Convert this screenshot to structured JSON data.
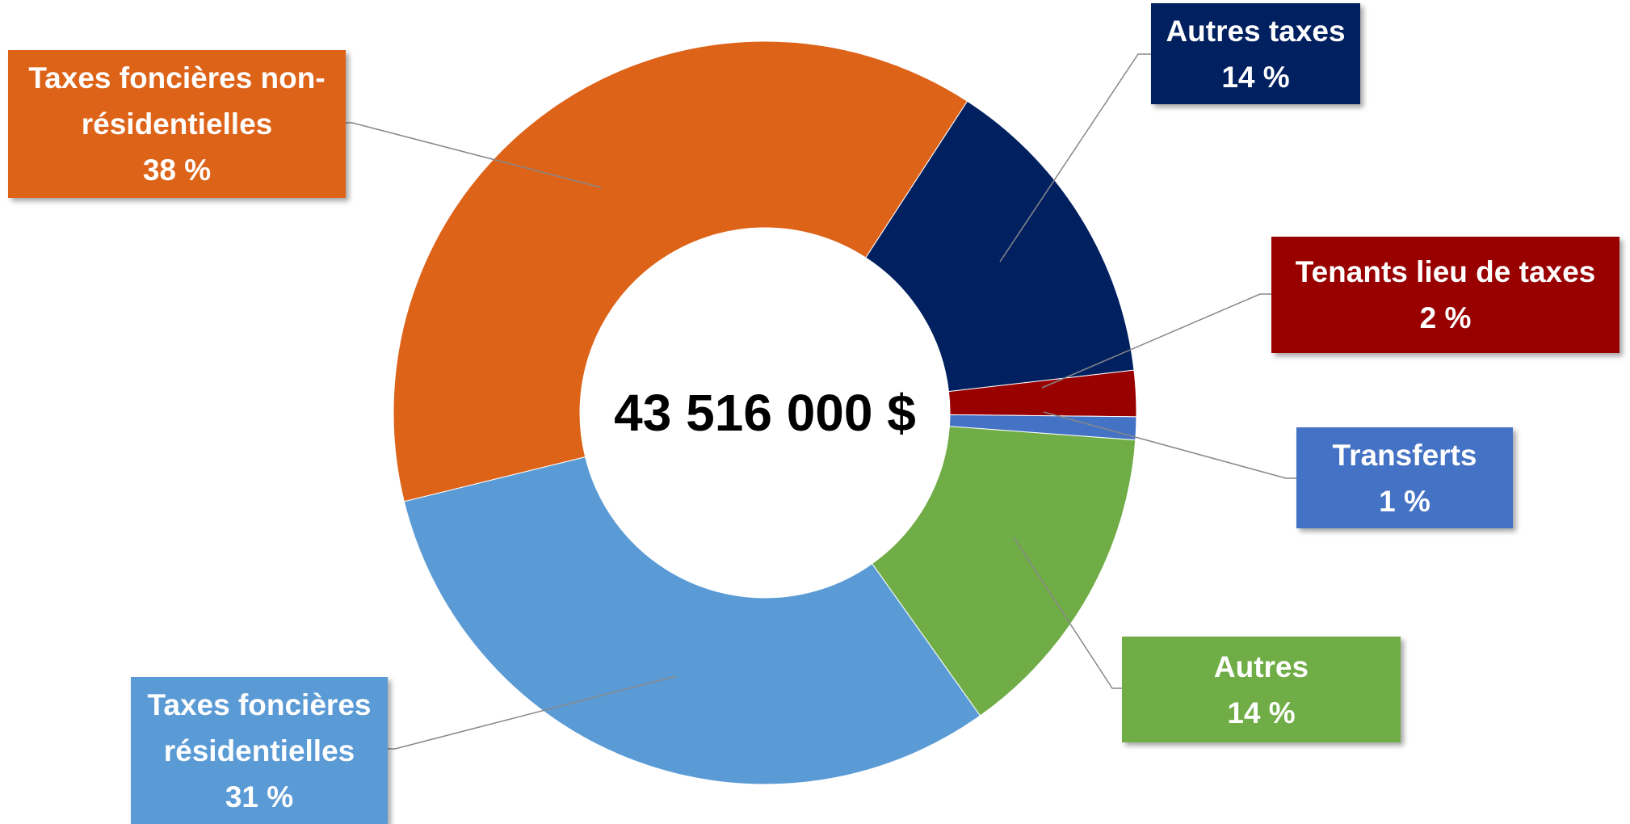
{
  "chart_data": {
    "type": "donut",
    "center_text": "43 516 000 $",
    "categories": [
      "Autres taxes",
      "Tenants lieu de taxes",
      "Transferts",
      "Autres",
      "Taxes foncières résidentielles",
      "Taxes foncières non-résidentielles"
    ],
    "values": [
      14,
      2,
      1,
      14,
      31,
      38
    ],
    "value_labels": [
      "14 %",
      "2 %",
      "1 %",
      "14 %",
      "31 %",
      "38 %"
    ],
    "colors": [
      "#002060",
      "#990000",
      "#4472c4",
      "#70ad47",
      "#5b9bd5",
      "#dd6319"
    ]
  }
}
